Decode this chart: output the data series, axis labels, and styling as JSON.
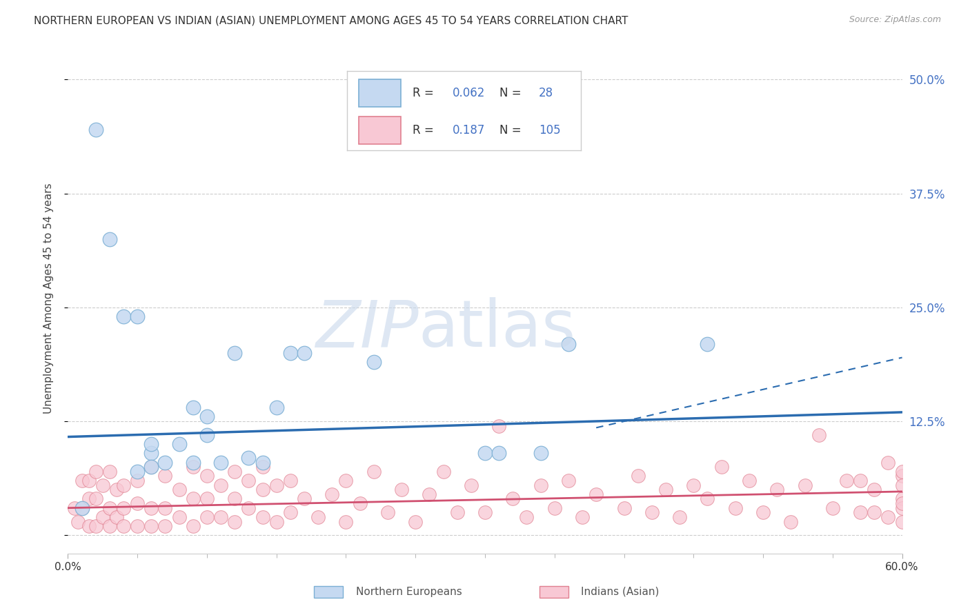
{
  "title": "NORTHERN EUROPEAN VS INDIAN (ASIAN) UNEMPLOYMENT AMONG AGES 45 TO 54 YEARS CORRELATION CHART",
  "source": "Source: ZipAtlas.com",
  "ylabel_label": "Unemployment Among Ages 45 to 54 years",
  "ytick_values": [
    0.0,
    0.125,
    0.25,
    0.375,
    0.5
  ],
  "ytick_labels": [
    "",
    "12.5%",
    "25.0%",
    "37.5%",
    "50.0%"
  ],
  "xlim": [
    0.0,
    0.6
  ],
  "ylim": [
    -0.02,
    0.54
  ],
  "blue_fill": "#c5d9f1",
  "blue_edge": "#7bafd4",
  "pink_fill": "#f8c8d4",
  "pink_edge": "#e08090",
  "line_blue_color": "#2b6cb0",
  "line_pink_color": "#d05070",
  "grid_color": "#cccccc",
  "blue_x": [
    0.02,
    0.03,
    0.04,
    0.05,
    0.06,
    0.06,
    0.07,
    0.08,
    0.09,
    0.1,
    0.1,
    0.11,
    0.12,
    0.14,
    0.15,
    0.16,
    0.22,
    0.3,
    0.31,
    0.34,
    0.36,
    0.46,
    0.01,
    0.05,
    0.09,
    0.06,
    0.13,
    0.17
  ],
  "blue_y": [
    0.445,
    0.325,
    0.24,
    0.24,
    0.09,
    0.1,
    0.08,
    0.1,
    0.14,
    0.13,
    0.11,
    0.08,
    0.2,
    0.08,
    0.14,
    0.2,
    0.19,
    0.09,
    0.09,
    0.09,
    0.21,
    0.21,
    0.03,
    0.07,
    0.08,
    0.075,
    0.085,
    0.2
  ],
  "pink_x": [
    0.005,
    0.007,
    0.01,
    0.01,
    0.015,
    0.015,
    0.015,
    0.02,
    0.02,
    0.02,
    0.025,
    0.025,
    0.03,
    0.03,
    0.03,
    0.035,
    0.035,
    0.04,
    0.04,
    0.04,
    0.05,
    0.05,
    0.05,
    0.06,
    0.06,
    0.06,
    0.07,
    0.07,
    0.07,
    0.08,
    0.08,
    0.09,
    0.09,
    0.09,
    0.1,
    0.1,
    0.1,
    0.11,
    0.11,
    0.12,
    0.12,
    0.12,
    0.13,
    0.13,
    0.14,
    0.14,
    0.14,
    0.15,
    0.15,
    0.16,
    0.16,
    0.17,
    0.18,
    0.19,
    0.2,
    0.2,
    0.21,
    0.22,
    0.23,
    0.24,
    0.25,
    0.26,
    0.27,
    0.28,
    0.29,
    0.3,
    0.31,
    0.32,
    0.33,
    0.34,
    0.35,
    0.36,
    0.37,
    0.38,
    0.4,
    0.41,
    0.42,
    0.43,
    0.44,
    0.45,
    0.46,
    0.47,
    0.48,
    0.49,
    0.5,
    0.51,
    0.52,
    0.53,
    0.54,
    0.55,
    0.56,
    0.57,
    0.58,
    0.59,
    0.6,
    0.6,
    0.6,
    0.6,
    0.6,
    0.6,
    0.6,
    0.59,
    0.58,
    0.57
  ],
  "pink_y": [
    0.03,
    0.015,
    0.03,
    0.06,
    0.01,
    0.04,
    0.06,
    0.01,
    0.04,
    0.07,
    0.02,
    0.055,
    0.01,
    0.03,
    0.07,
    0.02,
    0.05,
    0.01,
    0.03,
    0.055,
    0.01,
    0.035,
    0.06,
    0.01,
    0.03,
    0.075,
    0.01,
    0.03,
    0.065,
    0.02,
    0.05,
    0.01,
    0.04,
    0.075,
    0.02,
    0.04,
    0.065,
    0.02,
    0.055,
    0.015,
    0.04,
    0.07,
    0.03,
    0.06,
    0.02,
    0.05,
    0.075,
    0.015,
    0.055,
    0.025,
    0.06,
    0.04,
    0.02,
    0.045,
    0.015,
    0.06,
    0.035,
    0.07,
    0.025,
    0.05,
    0.015,
    0.045,
    0.07,
    0.025,
    0.055,
    0.025,
    0.12,
    0.04,
    0.02,
    0.055,
    0.03,
    0.06,
    0.02,
    0.045,
    0.03,
    0.065,
    0.025,
    0.05,
    0.02,
    0.055,
    0.04,
    0.075,
    0.03,
    0.06,
    0.025,
    0.05,
    0.015,
    0.055,
    0.11,
    0.03,
    0.06,
    0.025,
    0.05,
    0.02,
    0.04,
    0.065,
    0.03,
    0.07,
    0.015,
    0.055,
    0.035,
    0.08,
    0.025,
    0.06
  ],
  "blue_line_x0": 0.0,
  "blue_line_x1": 0.6,
  "blue_line_y0": 0.108,
  "blue_line_y1": 0.135,
  "pink_line_x0": 0.0,
  "pink_line_x1": 0.6,
  "pink_line_y0": 0.03,
  "pink_line_y1": 0.048,
  "dashed_line_x0": 0.38,
  "dashed_line_x1": 0.6,
  "dashed_line_y0": 0.118,
  "dashed_line_y1": 0.195
}
